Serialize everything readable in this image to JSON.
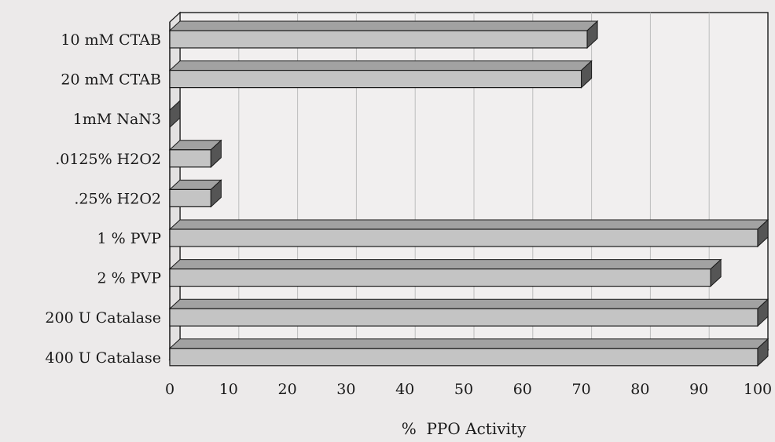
{
  "chart_data": {
    "type": "bar",
    "orientation": "horizontal",
    "style": "3d",
    "categories": [
      "10 mM CTAB",
      "20 mM CTAB",
      "1mM NaN3",
      ".0125% H2O2",
      ".25% H2O2",
      "1 % PVP",
      "2 % PVP",
      "200 U Catalase",
      "400 U Catalase"
    ],
    "values": [
      71,
      70,
      0,
      7,
      7,
      100,
      92,
      100,
      100
    ],
    "xlabel": "%  PPO Activity",
    "ylabel": "",
    "title": "",
    "xlim": [
      0,
      100
    ],
    "xticks": [
      "0",
      "10",
      "20",
      "30",
      "40",
      "50",
      "60",
      "70",
      "80",
      "90",
      "100"
    ],
    "grid": true,
    "legend": "none",
    "colors": {
      "bar_front": "#c4c4c4",
      "bar_top": "#a2a2a2",
      "bar_side": "#555555",
      "bar_outline": "#1a1a1a",
      "background": "#eceaea",
      "plot_back": "#f1efef",
      "grid": "#bdbdbd",
      "axis": "#1a1a1a"
    }
  }
}
